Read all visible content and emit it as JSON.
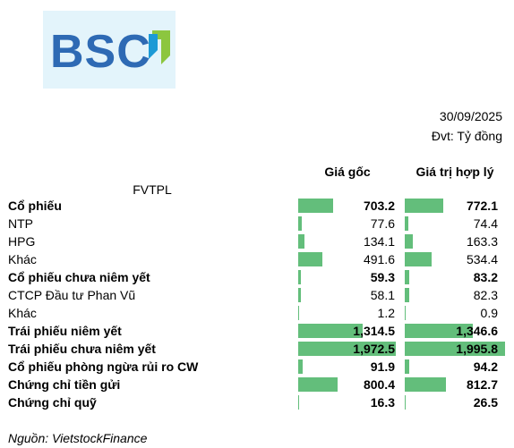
{
  "logo": {
    "text": "BSC"
  },
  "header": {
    "date": "30/09/2025",
    "unit": "Đvt: Tỷ đồng",
    "category_header": "FVTPL"
  },
  "chart_data": {
    "type": "table",
    "columns": [
      "Giá gốc",
      "Giá trị hợp lý"
    ],
    "bar_color": "#63be7b",
    "rows": [
      {
        "label": "Cổ phiếu",
        "bold": true,
        "values": [
          "703.2",
          "772.1"
        ],
        "nums": [
          703.2,
          772.1
        ]
      },
      {
        "label": "NTP",
        "bold": false,
        "values": [
          "77.6",
          "74.4"
        ],
        "nums": [
          77.6,
          74.4
        ]
      },
      {
        "label": "HPG",
        "bold": false,
        "values": [
          "134.1",
          "163.3"
        ],
        "nums": [
          134.1,
          163.3
        ]
      },
      {
        "label": "Khác",
        "bold": false,
        "values": [
          "491.6",
          "534.4"
        ],
        "nums": [
          491.6,
          534.4
        ]
      },
      {
        "label": "Cổ phiếu chưa niêm yết",
        "bold": true,
        "values": [
          "59.3",
          "83.2"
        ],
        "nums": [
          59.3,
          83.2
        ]
      },
      {
        "label": "CTCP Đầu tư Phan Vũ",
        "bold": false,
        "values": [
          "58.1",
          "82.3"
        ],
        "nums": [
          58.1,
          82.3
        ]
      },
      {
        "label": "Khác",
        "bold": false,
        "values": [
          "1.2",
          "0.9"
        ],
        "nums": [
          1.2,
          0.9
        ]
      },
      {
        "label": "Trái phiếu niêm yết",
        "bold": true,
        "values": [
          "1,314.5",
          "1,346.6"
        ],
        "nums": [
          1314.5,
          1346.6
        ]
      },
      {
        "label": "Trái phiếu chưa niêm yết",
        "bold": true,
        "values": [
          "1,972.5",
          "1,995.8"
        ],
        "nums": [
          1972.5,
          1995.8
        ]
      },
      {
        "label": "Cổ phiếu phòng ngừa rủi ro CW",
        "bold": true,
        "values": [
          "91.9",
          "94.2"
        ],
        "nums": [
          91.9,
          94.2
        ]
      },
      {
        "label": "Chứng chỉ tiền gửi",
        "bold": true,
        "values": [
          "800.4",
          "812.7"
        ],
        "nums": [
          800.4,
          812.7
        ]
      },
      {
        "label": "Chứng chỉ quỹ",
        "bold": true,
        "values": [
          "16.3",
          "26.5"
        ],
        "nums": [
          16.3,
          26.5
        ]
      }
    ]
  },
  "footer": {
    "source": "Nguồn: VietstockFinance"
  }
}
